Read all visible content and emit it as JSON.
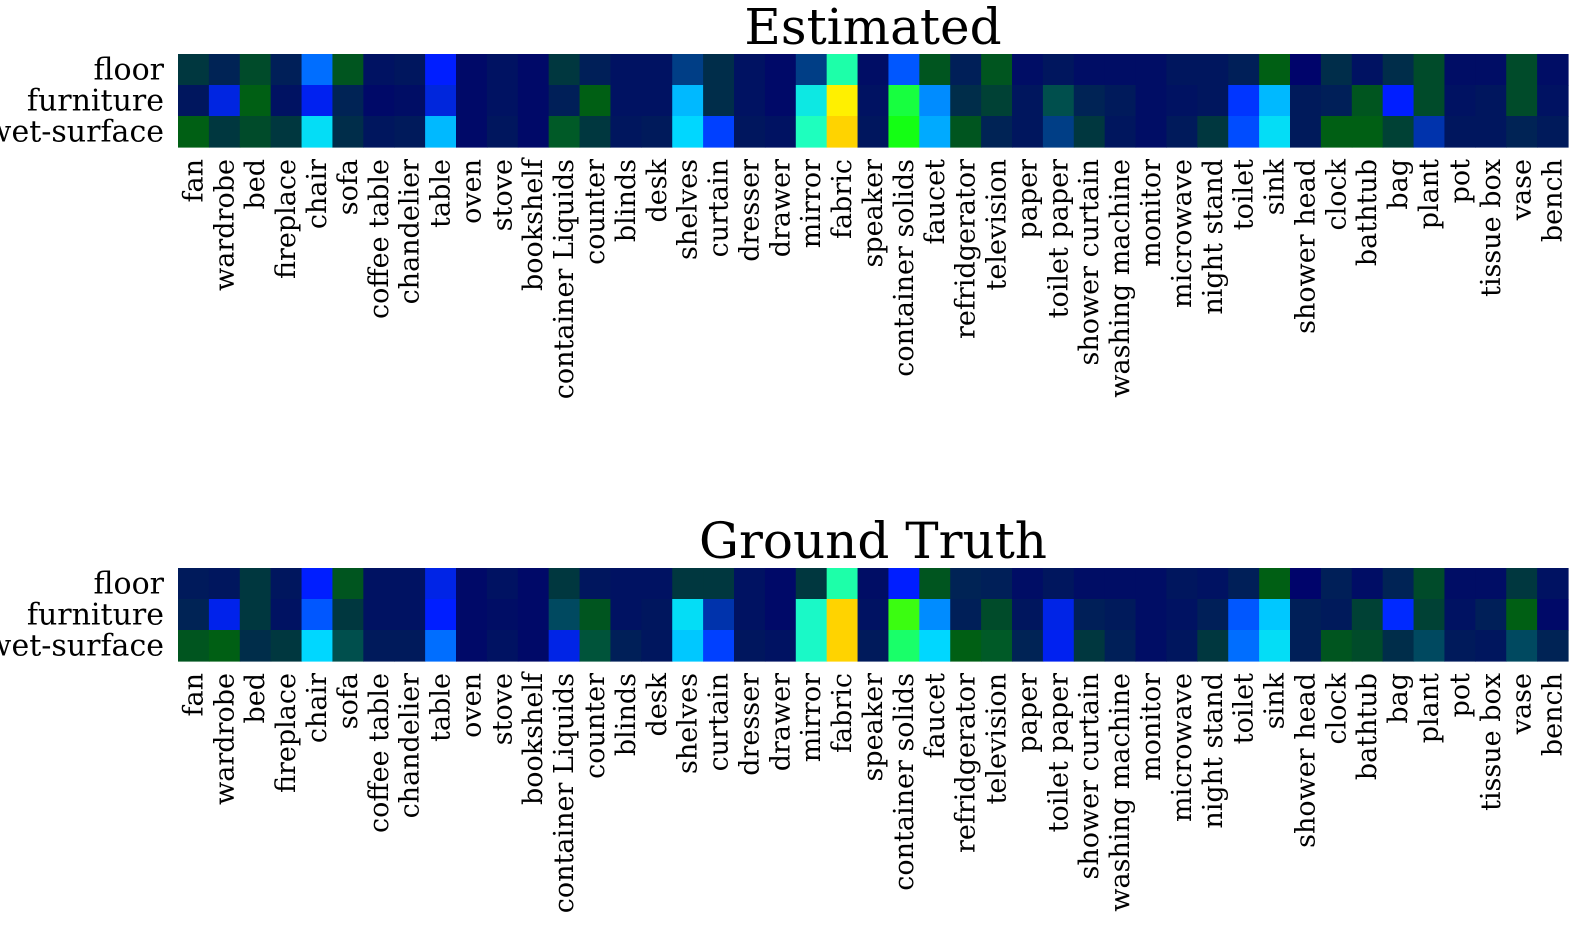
{
  "chart_data": [
    {
      "type": "heatmap",
      "title": "Estimated",
      "rows": [
        "floor",
        "furniture",
        "wet-surface"
      ],
      "categories": [
        "fan",
        "wardrobe",
        "bed",
        "fireplace",
        "chair",
        "sofa",
        "coffee table",
        "chandelier",
        "table",
        "oven",
        "stove",
        "bookshelf",
        "container Liquids",
        "counter",
        "blinds",
        "desk",
        "shelves",
        "curtain",
        "dresser",
        "drawer",
        "mirror",
        "fabric",
        "speaker",
        "container solids",
        "faucet",
        "refridgerator",
        "television",
        "paper",
        "toilet paper",
        "shower curtain",
        "washing machine",
        "monitor",
        "microwave",
        "night stand",
        "toilet",
        "sink",
        "shower head",
        "clock",
        "bathtub",
        "bag",
        "plant",
        "pot",
        "tissue box",
        "vase",
        "bench"
      ],
      "values": [
        [
          0.1,
          0.08,
          0.12,
          0.07,
          0.4,
          0.13,
          0.04,
          0.05,
          0.33,
          0.02,
          0.04,
          0.02,
          0.1,
          0.07,
          0.04,
          0.04,
          0.2,
          0.09,
          0.04,
          0.02,
          0.2,
          0.55,
          0.03,
          0.38,
          0.13,
          0.07,
          0.13,
          0.03,
          0.05,
          0.03,
          0.03,
          0.03,
          0.05,
          0.05,
          0.07,
          0.14,
          0.01,
          0.09,
          0.04,
          0.09,
          0.12,
          0.03,
          0.03,
          0.12,
          0.03
        ],
        [
          0.05,
          0.27,
          0.14,
          0.04,
          0.3,
          0.08,
          0.02,
          0.03,
          0.26,
          0.02,
          0.04,
          0.02,
          0.07,
          0.14,
          0.04,
          0.04,
          0.45,
          0.09,
          0.04,
          0.02,
          0.5,
          0.68,
          0.04,
          0.6,
          0.42,
          0.09,
          0.11,
          0.05,
          0.17,
          0.08,
          0.06,
          0.03,
          0.04,
          0.05,
          0.35,
          0.45,
          0.06,
          0.07,
          0.13,
          0.33,
          0.12,
          0.04,
          0.05,
          0.12,
          0.04
        ],
        [
          0.14,
          0.1,
          0.12,
          0.1,
          0.48,
          0.09,
          0.05,
          0.06,
          0.45,
          0.02,
          0.05,
          0.02,
          0.15,
          0.1,
          0.05,
          0.06,
          0.47,
          0.36,
          0.05,
          0.04,
          0.54,
          0.72,
          0.05,
          0.62,
          0.44,
          0.13,
          0.08,
          0.05,
          0.2,
          0.1,
          0.05,
          0.03,
          0.06,
          0.1,
          0.37,
          0.48,
          0.06,
          0.14,
          0.14,
          0.11,
          0.22,
          0.05,
          0.05,
          0.08,
          0.06
        ]
      ]
    },
    {
      "type": "heatmap",
      "title": "Ground Truth",
      "rows": [
        "floor",
        "furniture",
        "wet-surface"
      ],
      "categories": [
        "fan",
        "wardrobe",
        "bed",
        "fireplace",
        "chair",
        "sofa",
        "coffee table",
        "chandelier",
        "table",
        "oven",
        "stove",
        "bookshelf",
        "container Liquids",
        "counter",
        "blinds",
        "desk",
        "shelves",
        "curtain",
        "dresser",
        "drawer",
        "mirror",
        "fabric",
        "speaker",
        "container solids",
        "faucet",
        "refridgerator",
        "television",
        "paper",
        "toilet paper",
        "shower curtain",
        "washing machine",
        "monitor",
        "microwave",
        "night stand",
        "toilet",
        "sink",
        "shower head",
        "clock",
        "bathtub",
        "bag",
        "plant",
        "pot",
        "tissue box",
        "vase",
        "bench"
      ],
      "values": [
        [
          0.06,
          0.05,
          0.1,
          0.05,
          0.33,
          0.13,
          0.04,
          0.04,
          0.28,
          0.02,
          0.04,
          0.02,
          0.1,
          0.05,
          0.04,
          0.04,
          0.1,
          0.1,
          0.04,
          0.02,
          0.1,
          0.55,
          0.03,
          0.33,
          0.13,
          0.08,
          0.07,
          0.03,
          0.05,
          0.03,
          0.03,
          0.03,
          0.05,
          0.04,
          0.07,
          0.14,
          0.01,
          0.07,
          0.03,
          0.08,
          0.12,
          0.03,
          0.03,
          0.1,
          0.04
        ],
        [
          0.08,
          0.29,
          0.1,
          0.04,
          0.38,
          0.1,
          0.04,
          0.04,
          0.33,
          0.02,
          0.03,
          0.02,
          0.18,
          0.13,
          0.04,
          0.05,
          0.48,
          0.22,
          0.04,
          0.02,
          0.53,
          0.72,
          0.04,
          0.63,
          0.42,
          0.07,
          0.12,
          0.05,
          0.28,
          0.07,
          0.06,
          0.03,
          0.04,
          0.07,
          0.38,
          0.46,
          0.07,
          0.06,
          0.11,
          0.34,
          0.11,
          0.04,
          0.07,
          0.14,
          0.02
        ],
        [
          0.13,
          0.14,
          0.09,
          0.1,
          0.47,
          0.17,
          0.06,
          0.06,
          0.4,
          0.02,
          0.04,
          0.02,
          0.28,
          0.16,
          0.07,
          0.05,
          0.46,
          0.36,
          0.05,
          0.04,
          0.53,
          0.72,
          0.06,
          0.58,
          0.47,
          0.14,
          0.15,
          0.08,
          0.3,
          0.1,
          0.07,
          0.03,
          0.05,
          0.1,
          0.4,
          0.48,
          0.07,
          0.13,
          0.12,
          0.09,
          0.18,
          0.06,
          0.05,
          0.18,
          0.08
        ]
      ]
    }
  ]
}
